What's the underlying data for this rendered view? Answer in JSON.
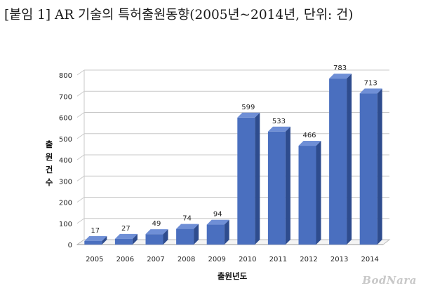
{
  "caption": "[붙임 1] AR 기술의 특허출원동향(2005년~2014년, 단위: 건)",
  "watermark": "BodNara",
  "chart_data": {
    "type": "bar",
    "title": "",
    "xlabel": "출원년도",
    "ylabel": "출원건수",
    "categories": [
      "2005",
      "2006",
      "2007",
      "2008",
      "2009",
      "2010",
      "2011",
      "2012",
      "2013",
      "2014"
    ],
    "values": [
      17,
      27,
      49,
      74,
      94,
      599,
      533,
      466,
      783,
      713
    ],
    "yticks": [
      0,
      100,
      200,
      300,
      400,
      500,
      600,
      700,
      800
    ],
    "ylim": [
      0,
      800
    ],
    "grid": true,
    "legend": "none",
    "bar_color": "#4a6fbf",
    "bar_side_color": "#2e4c8e",
    "bar_top_color": "#6f8fd6"
  }
}
